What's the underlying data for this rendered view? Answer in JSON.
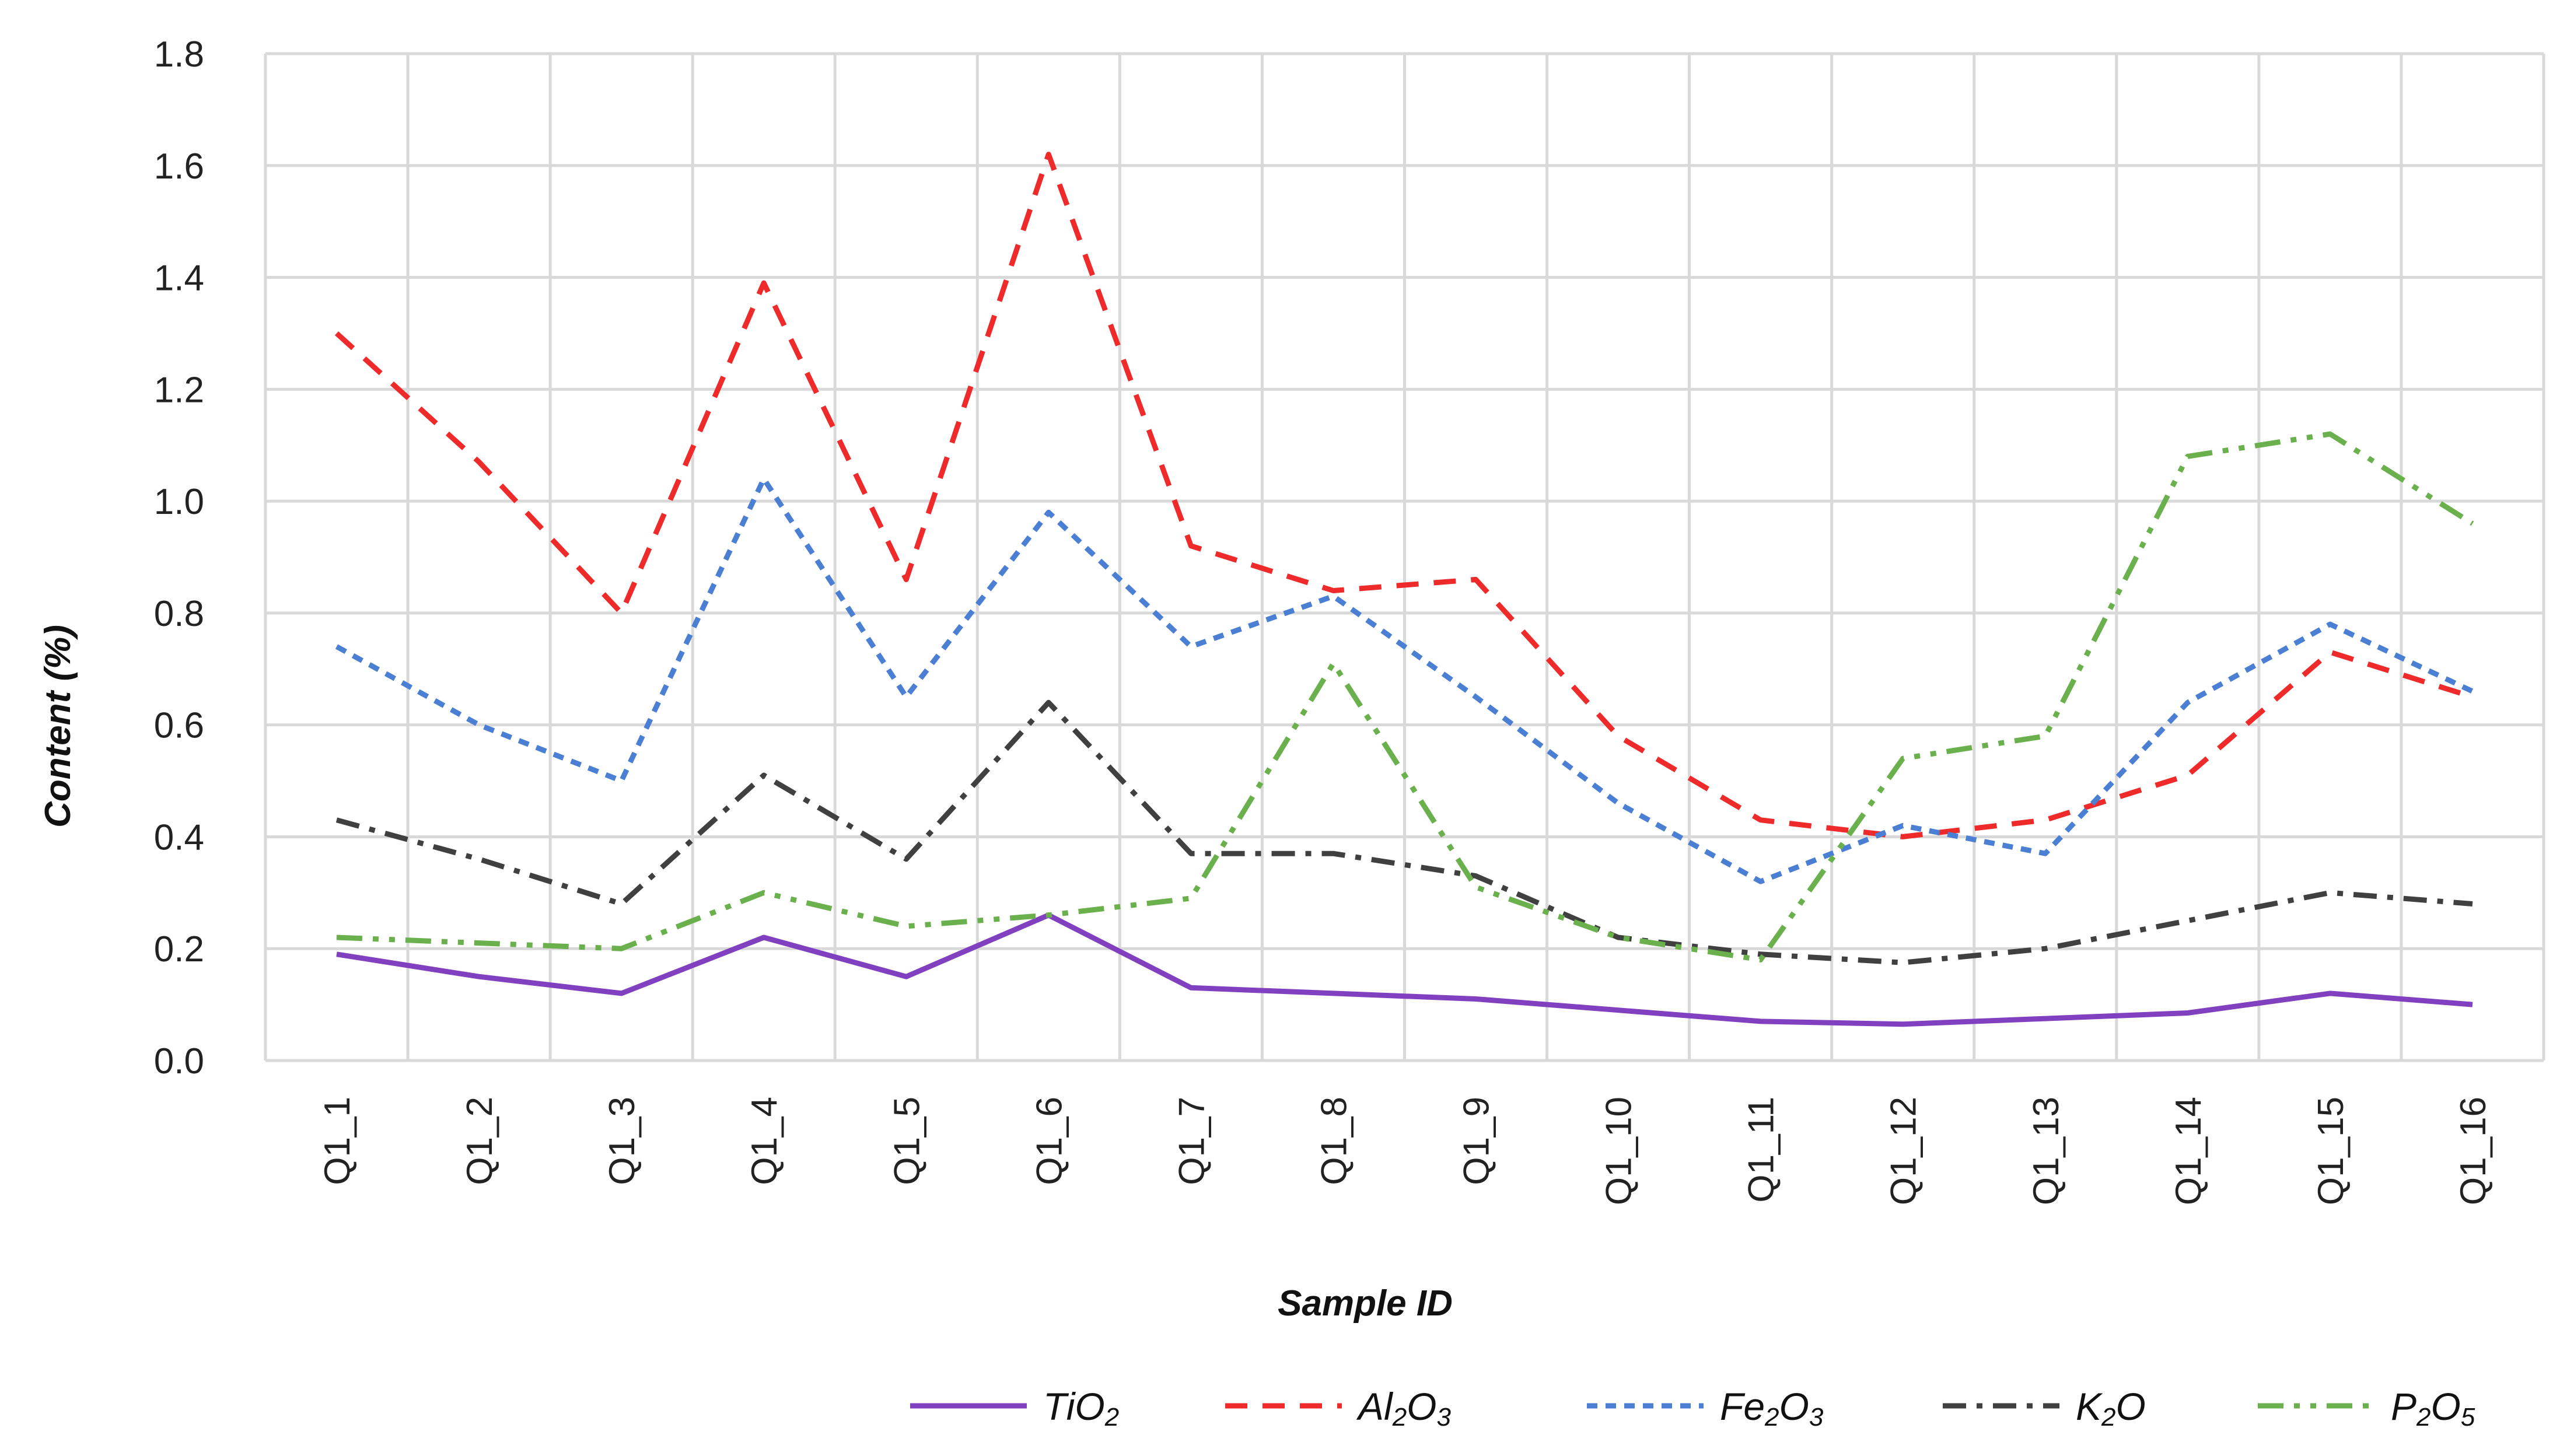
{
  "chart_data": {
    "type": "line",
    "title": "",
    "xlabel": "Sample ID",
    "ylabel": "Content (%)",
    "ylim": [
      0,
      1.8
    ],
    "yticks": [
      "0.0",
      "0.2",
      "0.4",
      "0.6",
      "0.8",
      "1.0",
      "1.2",
      "1.4",
      "1.6",
      "1.8"
    ],
    "grid": true,
    "legend_position": "bottom",
    "categories": [
      "Q1_1",
      "Q1_2",
      "Q1_3",
      "Q1_4",
      "Q1_5",
      "Q1_6",
      "Q1_7",
      "Q1_8",
      "Q1_9",
      "Q1_10",
      "Q1_11",
      "Q1_12",
      "Q1_13",
      "Q1_14",
      "Q1_15",
      "Q1_16"
    ],
    "series": [
      {
        "name": "TiO2",
        "legend": {
          "base1": "TiO",
          "sub1": "2",
          "base2": "",
          "sub2": ""
        },
        "color": "#8040c0",
        "dash": "solid",
        "values": [
          0.19,
          0.15,
          0.12,
          0.22,
          0.15,
          0.26,
          0.13,
          0.12,
          0.11,
          0.09,
          0.07,
          0.065,
          0.075,
          0.085,
          0.12,
          0.1
        ]
      },
      {
        "name": "Al2O3",
        "legend": {
          "base1": "Al",
          "sub1": "2",
          "base2": "O",
          "sub2": "3"
        },
        "color": "#ee2a2a",
        "dash": "dash",
        "values": [
          1.3,
          1.07,
          0.8,
          1.39,
          0.86,
          1.62,
          0.92,
          0.84,
          0.86,
          0.58,
          0.43,
          0.4,
          0.43,
          0.51,
          0.73,
          0.65
        ]
      },
      {
        "name": "Fe2O3",
        "legend": {
          "base1": "Fe",
          "sub1": "2",
          "base2": "O",
          "sub2": "3"
        },
        "color": "#4a7fd4",
        "dash": "dot",
        "values": [
          0.74,
          0.6,
          0.5,
          1.04,
          0.65,
          0.98,
          0.74,
          0.83,
          0.65,
          0.46,
          0.32,
          0.42,
          0.37,
          0.64,
          0.78,
          0.66
        ]
      },
      {
        "name": "K2O",
        "legend": {
          "base1": "K",
          "sub1": "2",
          "base2": "O",
          "sub2": ""
        },
        "color": "#404040",
        "dash": "dashdot",
        "values": [
          0.43,
          0.36,
          0.28,
          0.51,
          0.36,
          0.64,
          0.37,
          0.37,
          0.33,
          0.22,
          0.19,
          0.175,
          0.2,
          0.25,
          0.3,
          0.28
        ]
      },
      {
        "name": "P2O5",
        "legend": {
          "base1": "P",
          "sub1": "2",
          "base2": "O",
          "sub2": "5"
        },
        "color": "#6ab04c",
        "dash": "dashdotdot",
        "values": [
          0.22,
          0.21,
          0.2,
          0.3,
          0.24,
          0.26,
          0.29,
          0.71,
          0.31,
          0.22,
          0.18,
          0.54,
          0.58,
          1.08,
          1.12,
          0.96
        ]
      }
    ]
  }
}
